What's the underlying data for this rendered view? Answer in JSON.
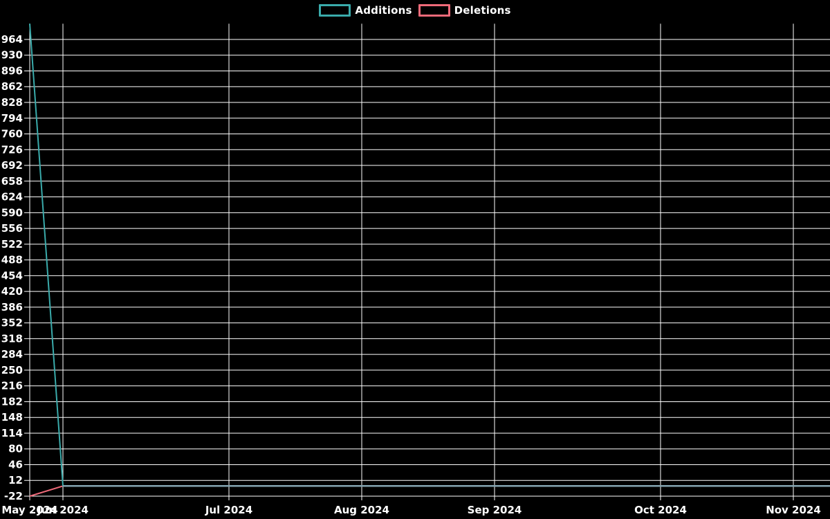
{
  "chart_data": {
    "type": "line",
    "title": "",
    "xlabel": "",
    "ylabel": "",
    "x_unit": "week",
    "x_count": 25,
    "series": [
      {
        "name": "Additions",
        "color": "#3aabab",
        "values": [
          998,
          0,
          0,
          0,
          0,
          0,
          0,
          0,
          0,
          0,
          0,
          0,
          0,
          0,
          0,
          0,
          0,
          0,
          0,
          0,
          0,
          0,
          0,
          0,
          0
        ]
      },
      {
        "name": "Deletions",
        "color": "#ef6a79",
        "values": [
          -22,
          0,
          0,
          0,
          0,
          0,
          0,
          0,
          0,
          0,
          0,
          0,
          0,
          0,
          0,
          0,
          0,
          0,
          0,
          0,
          0,
          0,
          0,
          0,
          0
        ]
      }
    ],
    "deletions_plotted_negative": true,
    "overlap_line_color": "#85a5b2",
    "x_ticks": [
      {
        "i": 0,
        "label": "May 2024"
      },
      {
        "i": 1,
        "label": "Jun 2024"
      },
      {
        "i": 6,
        "label": "Jul 2024"
      },
      {
        "i": 10,
        "label": "Aug 2024"
      },
      {
        "i": 14,
        "label": "Sep 2024"
      },
      {
        "i": 19,
        "label": "Oct 2024"
      },
      {
        "i": 23,
        "label": "Nov 2024"
      }
    ],
    "y_ticks": [
      964,
      930,
      896,
      862,
      828,
      794,
      760,
      726,
      692,
      658,
      624,
      590,
      556,
      522,
      488,
      454,
      420,
      386,
      352,
      318,
      284,
      250,
      216,
      182,
      148,
      114,
      80,
      46,
      12,
      -22
    ],
    "ylim": [
      -22,
      998
    ],
    "grid": true,
    "grid_color": "#ffffff",
    "background": "#000000",
    "text_color": "#ffffff",
    "legend_position": "top-center"
  }
}
